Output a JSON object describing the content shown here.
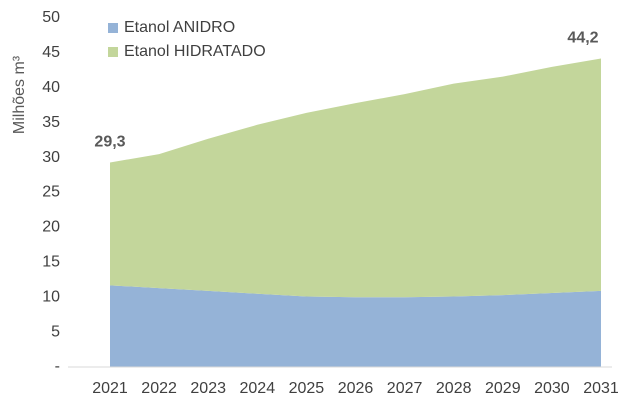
{
  "chart_data": {
    "type": "stacked_area",
    "y_label": "Milhões m³",
    "categories": [
      "2021",
      "2022",
      "2023",
      "2024",
      "2025",
      "2026",
      "2027",
      "2028",
      "2029",
      "2030",
      "2031"
    ],
    "series": [
      {
        "name": "Etanol ANIDRO",
        "color": "#95b3d7",
        "values": [
          11.7,
          11.3,
          10.9,
          10.5,
          10.1,
          10.0,
          10.0,
          10.1,
          10.3,
          10.6,
          10.9
        ]
      },
      {
        "name": "Etanol HIDRATADO",
        "color": "#c3d69b",
        "values": [
          17.6,
          19.2,
          21.8,
          24.2,
          26.3,
          27.8,
          29.1,
          30.5,
          31.3,
          32.4,
          33.3
        ]
      }
    ],
    "annotations": [
      {
        "x": "2021",
        "value": 29.3,
        "label": "29,3"
      },
      {
        "x": "2031",
        "value": 44.2,
        "label": "44,2"
      }
    ],
    "ylim": [
      0,
      50
    ],
    "yticks": [
      {
        "value": 0,
        "label": "-"
      },
      5,
      10,
      15,
      20,
      25,
      30,
      35,
      40,
      45,
      50
    ],
    "legend": "top-left"
  }
}
